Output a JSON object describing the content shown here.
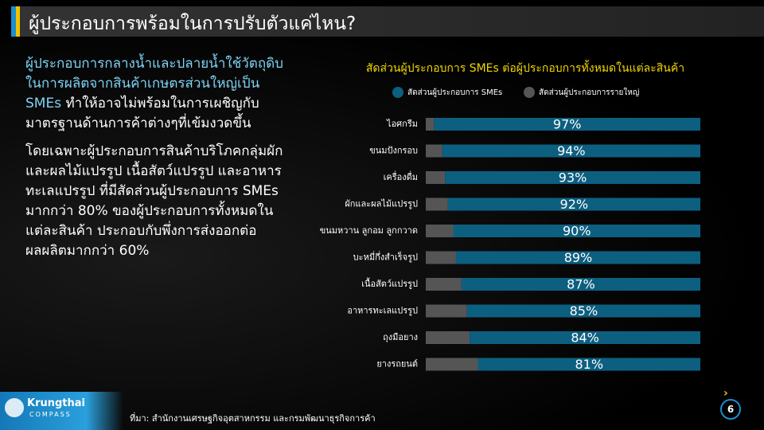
{
  "header": {
    "title": "ผู้ประกอบการพร้อมในการปรับตัวแค่ไหน?"
  },
  "body": {
    "paragraph1": {
      "highlight": "ผู้ประกอบการกลางน้ำและปลายน้ำใช้วัตถุดิบในการผลิตจากสินค้าเกษตรส่วนใหญ่เป็น SMEs",
      "text": "ทำให้อาจไม่พร้อมในการเผชิญกับมาตรฐานด้านการค้าต่างๆที่เข้มงวดขึ้น"
    },
    "paragraph2": "โดยเฉพาะผู้ประกอบการสินค้าบริโภคกลุ่มผักและผลไม้แปรรูป เนื้อสัตว์แปรรูป และอาหารทะเลแปรรูป ที่มีสัดส่วนผู้ประกอบการ SMEs มากกว่า 80% ของผู้ประกอบการทั้งหมดในแต่ละสินค้า ประกอบกับพึ่งการส่งออกต่อผลผลิตมากกว่า 60%"
  },
  "chart_data": {
    "type": "bar",
    "orientation": "horizontal",
    "stacked": true,
    "title": "สัดส่วนผู้ประกอบการ SMEs ต่อผู้ประกอบการทั้งหมดในแต่ละสินค้า",
    "categories": [
      "ไอศกรีม",
      "ขนมปังกรอบ",
      "เครื่องดื่ม",
      "ผักและผลไม้แปรรูป",
      "ขนมหวาน ลูกอม ลูกกวาด",
      "บะหมี่กึ่งสำเร็จรูป",
      "เนื้อสัตว์แปรรูป",
      "อาหารทะเลแปรรูป",
      "ถุงมือยาง",
      "ยางรถยนต์"
    ],
    "series": [
      {
        "name": "สัดส่วนผู้ประกอบการ SMEs",
        "color": "#0d5f80",
        "values": [
          97,
          94,
          93,
          92,
          90,
          89,
          87,
          85,
          84,
          81
        ],
        "value_labels": [
          "97%",
          "94%",
          "93%",
          "92%",
          "90%",
          "89%",
          "87%",
          "85%",
          "84%",
          "81%"
        ]
      },
      {
        "name": "สัดส่วนผู้ประกอบการรายใหญ่",
        "color": "#555555",
        "values": [
          3,
          6,
          7,
          8,
          10,
          11,
          13,
          15,
          16,
          19
        ]
      }
    ],
    "xlim": [
      0,
      100
    ],
    "legend": "top"
  },
  "footer": {
    "source": "ที่มา: สำนักงานเศรษฐกิจอุตสาหกรรม และกรมพัฒนาธุรกิจการค้า",
    "logo": {
      "name": "Krungthai",
      "sub": "COMPASS"
    },
    "page": 6
  }
}
